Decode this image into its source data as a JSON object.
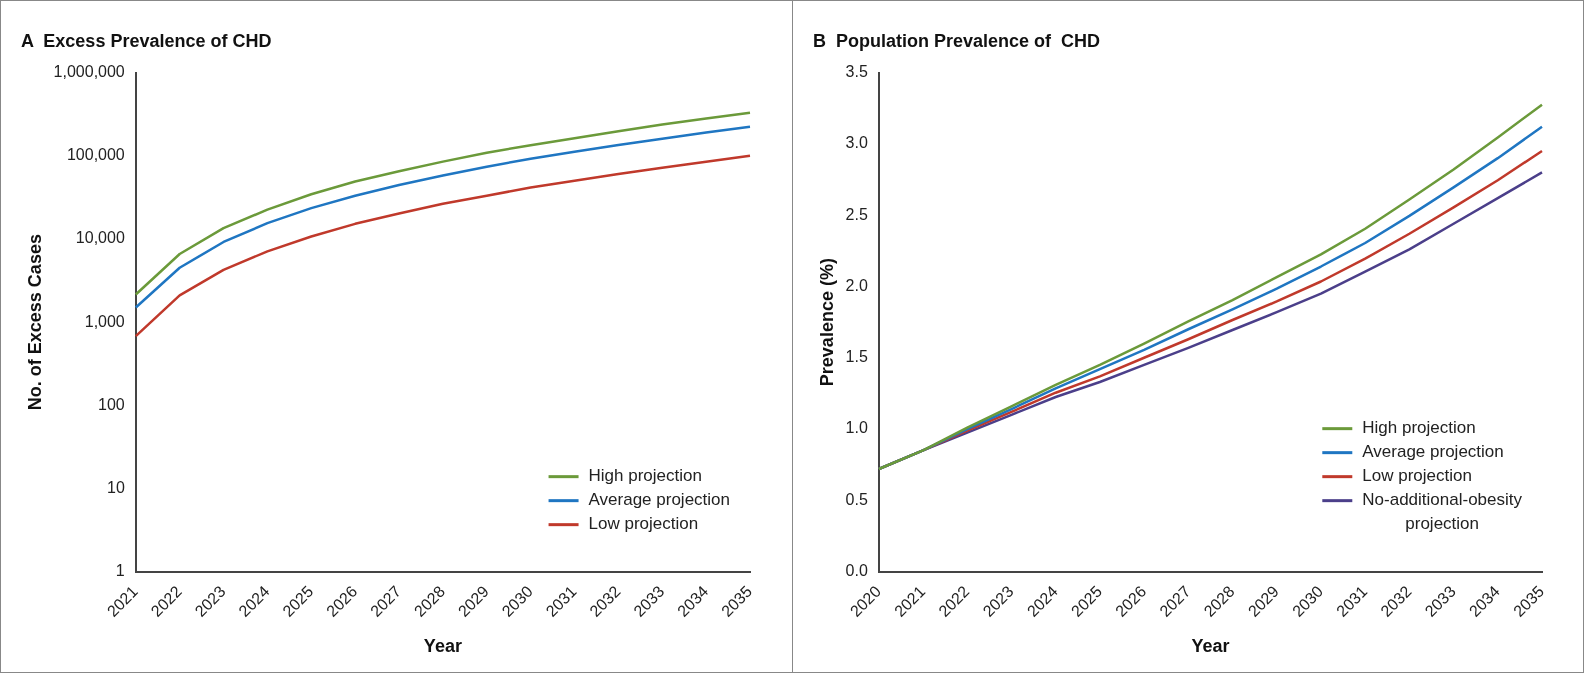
{
  "chart_data": [
    {
      "type": "line",
      "title": "A  Excess Prevalence of CHD",
      "xlabel": "Year",
      "ylabel": "No. of Excess Cases",
      "categories": [
        "2021",
        "2022",
        "2023",
        "2024",
        "2025",
        "2026",
        "2027",
        "2028",
        "2029",
        "2030",
        "2031",
        "2032",
        "2033",
        "2034",
        "2035"
      ],
      "series": [
        {
          "name": "High projection",
          "color": "#6b9a3a",
          "values": [
            2150,
            6600,
            13500,
            22500,
            34500,
            49000,
            65000,
            85000,
            109000,
            134000,
            162000,
            197000,
            238000,
            280000,
            330000
          ]
        },
        {
          "name": "Average projection",
          "color": "#1f76c2",
          "values": [
            1500,
            4500,
            9200,
            15500,
            23500,
            33000,
            44500,
            58000,
            74000,
            92000,
            112000,
            135000,
            160000,
            191000,
            223000
          ]
        },
        {
          "name": "Low projection",
          "color": "#c0392b",
          "values": [
            680,
            2100,
            4250,
            7100,
            10700,
            15200,
            20200,
            26500,
            33000,
            41600,
            50000,
            60400,
            72000,
            85000,
            100000
          ]
        }
      ],
      "log": "y",
      "ylim": [
        1,
        1000000
      ],
      "yticks": [
        1,
        10,
        100,
        {
          "value": 1000,
          "label": "1,000"
        },
        {
          "value": 10000,
          "label": "10,000"
        },
        {
          "value": 100000,
          "label": "100,000"
        },
        {
          "value": 1000000,
          "label": "1,000,000"
        }
      ],
      "grid": false,
      "legend": "bottom right",
      "marker": "none",
      "line_style": "solid"
    },
    {
      "type": "line",
      "title": "B  Population Prevalence of  CHD",
      "xlabel": "Year",
      "ylabel": "Prevalence (%)",
      "categories": [
        "2020",
        "2021",
        "2022",
        "2023",
        "2024",
        "2025",
        "2026",
        "2027",
        "2028",
        "2029",
        "2030",
        "2031",
        "2032",
        "2033",
        "2034",
        "2035"
      ],
      "series": [
        {
          "name": "High projection",
          "color": "#6b9a3a",
          "values": [
            0.72,
            0.85,
            1.01,
            1.16,
            1.31,
            1.45,
            1.6,
            1.755,
            1.905,
            2.065,
            2.225,
            2.405,
            2.61,
            2.82,
            3.045,
            3.275
          ]
        },
        {
          "name": "Average projection",
          "color": "#1f76c2",
          "values": [
            0.72,
            0.85,
            1.0,
            1.14,
            1.285,
            1.42,
            1.555,
            1.7,
            1.84,
            1.985,
            2.14,
            2.305,
            2.495,
            2.695,
            2.9,
            3.12
          ]
        },
        {
          "name": "Low projection",
          "color": "#c0392b",
          "values": [
            0.72,
            0.85,
            0.99,
            1.12,
            1.255,
            1.37,
            1.5,
            1.63,
            1.765,
            1.895,
            2.035,
            2.195,
            2.37,
            2.555,
            2.745,
            2.95
          ]
        },
        {
          "name": "No-additional-obesity projection",
          "color": "#4b3f8a",
          "values": [
            0.72,
            0.85,
            0.975,
            1.1,
            1.225,
            1.33,
            1.45,
            1.57,
            1.695,
            1.82,
            1.95,
            2.105,
            2.26,
            2.44,
            2.62,
            2.8
          ]
        }
      ],
      "ylim": [
        0,
        3.5
      ],
      "yticks": [
        {
          "value": 0,
          "label": "0.0"
        },
        0.5,
        {
          "value": 1,
          "label": "1.0"
        },
        1.5,
        {
          "value": 2,
          "label": "2.0"
        },
        2.5,
        {
          "value": 3,
          "label": "3.0"
        },
        3.5
      ],
      "grid": false,
      "legend": "bottom right",
      "marker": "none",
      "line_style": "solid"
    }
  ]
}
